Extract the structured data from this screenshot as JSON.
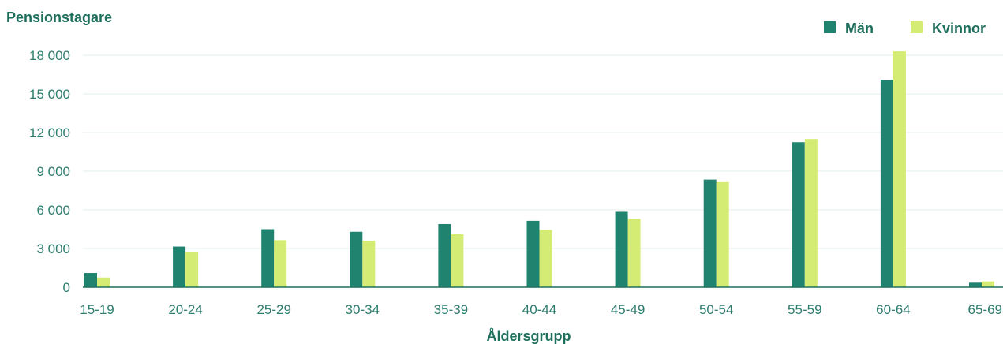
{
  "chart_data": {
    "type": "bar",
    "ylabel": "Pensionstagare",
    "xlabel": "Åldersgrupp",
    "categories": [
      "15-19",
      "20-24",
      "25-29",
      "30-34",
      "35-39",
      "40-44",
      "45-49",
      "50-54",
      "55-59",
      "60-64",
      "65-69"
    ],
    "series": [
      {
        "name": "Män",
        "color": "#20836f",
        "values": [
          1100,
          3150,
          4500,
          4300,
          4900,
          5150,
          5850,
          8350,
          11250,
          16100,
          350
        ]
      },
      {
        "name": "Kvinnor",
        "color": "#d4ec74",
        "values": [
          750,
          2700,
          3650,
          3600,
          4100,
          4450,
          5300,
          8150,
          11500,
          18300,
          450
        ]
      }
    ],
    "ylim": [
      0,
      18000
    ],
    "yticks": [
      0,
      3000,
      6000,
      9000,
      12000,
      15000,
      18000
    ],
    "ytick_labels": [
      "0",
      "3 000",
      "6 000",
      "9 000",
      "12 000",
      "15 000",
      "18 000"
    ],
    "grid": true,
    "legend_position": "top-right"
  }
}
